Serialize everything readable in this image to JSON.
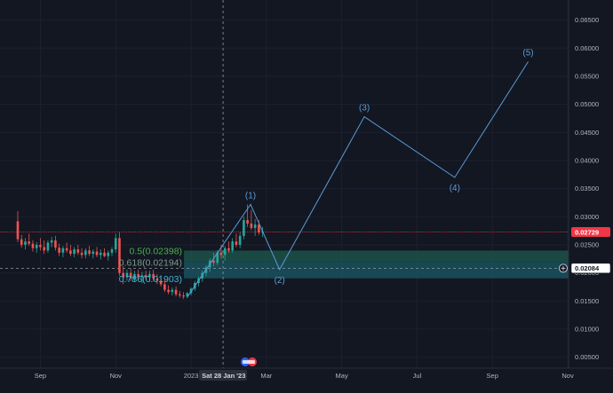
{
  "chart_data": {
    "type": "candlestick",
    "x_ticks": [
      {
        "label": "Sep",
        "t": 0.6
      },
      {
        "label": "Nov",
        "t": 2.6
      },
      {
        "label": "2023",
        "t": 4.6
      },
      {
        "label": "Mar",
        "t": 6.6
      },
      {
        "label": "May",
        "t": 8.6
      },
      {
        "label": "Jul",
        "t": 10.6
      },
      {
        "label": "Sep",
        "t": 12.6
      },
      {
        "label": "Nov",
        "t": 14.6
      }
    ],
    "crosshair_date_label": "Sat 28 Jan '23",
    "crosshair_t": 5.45,
    "y_ticks": [
      "0.06500",
      "0.06000",
      "0.05500",
      "0.05000",
      "0.04500",
      "0.04000",
      "0.03500",
      "0.03000",
      "0.02500",
      "0.02000",
      "0.01500",
      "0.01000",
      "0.00500"
    ],
    "last_price": {
      "label": "0.02729",
      "value": 0.02729,
      "color": "#f23645"
    },
    "crosshair_price": {
      "label": "0.02084",
      "value": 0.02084
    },
    "fib_levels": [
      {
        "label": "0.5(0.02398)",
        "value": 0.02398,
        "color": "#4caf50"
      },
      {
        "label": "0.618(0.02194)",
        "value": 0.02194,
        "color": "#7d9c8c"
      },
      {
        "label": "0.786(0.01903)",
        "value": 0.01903,
        "color": "#3fb4d6"
      }
    ],
    "zones": [
      {
        "from": 0.02194,
        "to": 0.02398,
        "color": "#1e5a4f"
      },
      {
        "from": 0.01903,
        "to": 0.02194,
        "color": "#1a5a66"
      }
    ],
    "elliott_wave": {
      "color": "#5b9bd5",
      "points": [
        {
          "label": "",
          "t": 4.5,
          "price": 0.0157
        },
        {
          "label": "(1)",
          "t": 6.18,
          "price": 0.0322
        },
        {
          "label": "(2)",
          "t": 6.95,
          "price": 0.0206
        },
        {
          "label": "(3)",
          "t": 9.2,
          "price": 0.0478
        },
        {
          "label": "(4)",
          "t": 11.6,
          "price": 0.037
        },
        {
          "label": "(5)",
          "t": 13.55,
          "price": 0.0576
        }
      ]
    },
    "candles": [
      {
        "t": 0.0,
        "o": 0.0292,
        "h": 0.031,
        "l": 0.0255,
        "c": 0.026
      },
      {
        "t": 0.1,
        "o": 0.026,
        "h": 0.0268,
        "l": 0.0245,
        "c": 0.025
      },
      {
        "t": 0.2,
        "o": 0.025,
        "h": 0.0262,
        "l": 0.0242,
        "c": 0.0256
      },
      {
        "t": 0.3,
        "o": 0.0256,
        "h": 0.027,
        "l": 0.0248,
        "c": 0.0252
      },
      {
        "t": 0.4,
        "o": 0.0252,
        "h": 0.0258,
        "l": 0.0238,
        "c": 0.0244
      },
      {
        "t": 0.5,
        "o": 0.0244,
        "h": 0.0255,
        "l": 0.0236,
        "c": 0.025
      },
      {
        "t": 0.6,
        "o": 0.025,
        "h": 0.0262,
        "l": 0.024,
        "c": 0.0246
      },
      {
        "t": 0.7,
        "o": 0.0246,
        "h": 0.0258,
        "l": 0.0234,
        "c": 0.024
      },
      {
        "t": 0.8,
        "o": 0.024,
        "h": 0.0258,
        "l": 0.0236,
        "c": 0.0254
      },
      {
        "t": 0.9,
        "o": 0.0254,
        "h": 0.0264,
        "l": 0.0246,
        "c": 0.0258
      },
      {
        "t": 1.0,
        "o": 0.0258,
        "h": 0.0266,
        "l": 0.024,
        "c": 0.0245
      },
      {
        "t": 1.1,
        "o": 0.0245,
        "h": 0.0252,
        "l": 0.023,
        "c": 0.0236
      },
      {
        "t": 1.2,
        "o": 0.0236,
        "h": 0.0248,
        "l": 0.0228,
        "c": 0.0244
      },
      {
        "t": 1.3,
        "o": 0.0244,
        "h": 0.0254,
        "l": 0.0236,
        "c": 0.024
      },
      {
        "t": 1.4,
        "o": 0.024,
        "h": 0.025,
        "l": 0.023,
        "c": 0.0234
      },
      {
        "t": 1.5,
        "o": 0.0234,
        "h": 0.0246,
        "l": 0.0228,
        "c": 0.0242
      },
      {
        "t": 1.6,
        "o": 0.0242,
        "h": 0.025,
        "l": 0.0232,
        "c": 0.0236
      },
      {
        "t": 1.7,
        "o": 0.0236,
        "h": 0.0244,
        "l": 0.0226,
        "c": 0.0232
      },
      {
        "t": 1.8,
        "o": 0.0232,
        "h": 0.0244,
        "l": 0.0226,
        "c": 0.024
      },
      {
        "t": 1.9,
        "o": 0.024,
        "h": 0.0248,
        "l": 0.023,
        "c": 0.0234
      },
      {
        "t": 2.0,
        "o": 0.0234,
        "h": 0.0242,
        "l": 0.0226,
        "c": 0.0238
      },
      {
        "t": 2.1,
        "o": 0.0238,
        "h": 0.0246,
        "l": 0.0228,
        "c": 0.0232
      },
      {
        "t": 2.2,
        "o": 0.0232,
        "h": 0.0242,
        "l": 0.0224,
        "c": 0.0236
      },
      {
        "t": 2.3,
        "o": 0.0236,
        "h": 0.0244,
        "l": 0.0228,
        "c": 0.023
      },
      {
        "t": 2.4,
        "o": 0.023,
        "h": 0.024,
        "l": 0.0222,
        "c": 0.0236
      },
      {
        "t": 2.5,
        "o": 0.0236,
        "h": 0.0246,
        "l": 0.023,
        "c": 0.0242
      },
      {
        "t": 2.6,
        "o": 0.0242,
        "h": 0.027,
        "l": 0.0236,
        "c": 0.0262
      },
      {
        "t": 2.7,
        "o": 0.0262,
        "h": 0.0272,
        "l": 0.0195,
        "c": 0.02
      },
      {
        "t": 2.8,
        "o": 0.02,
        "h": 0.0212,
        "l": 0.018,
        "c": 0.0192
      },
      {
        "t": 2.9,
        "o": 0.0192,
        "h": 0.0206,
        "l": 0.0186,
        "c": 0.02
      },
      {
        "t": 3.0,
        "o": 0.02,
        "h": 0.0208,
        "l": 0.0186,
        "c": 0.019
      },
      {
        "t": 3.1,
        "o": 0.019,
        "h": 0.0204,
        "l": 0.0184,
        "c": 0.0198
      },
      {
        "t": 3.2,
        "o": 0.0198,
        "h": 0.0206,
        "l": 0.0186,
        "c": 0.0192
      },
      {
        "t": 3.3,
        "o": 0.0192,
        "h": 0.0202,
        "l": 0.0182,
        "c": 0.0196
      },
      {
        "t": 3.4,
        "o": 0.0196,
        "h": 0.0204,
        "l": 0.0188,
        "c": 0.0192
      },
      {
        "t": 3.5,
        "o": 0.0192,
        "h": 0.0204,
        "l": 0.0184,
        "c": 0.0198
      },
      {
        "t": 3.6,
        "o": 0.0198,
        "h": 0.0206,
        "l": 0.0186,
        "c": 0.019
      },
      {
        "t": 3.7,
        "o": 0.019,
        "h": 0.0198,
        "l": 0.018,
        "c": 0.0186
      },
      {
        "t": 3.8,
        "o": 0.0186,
        "h": 0.0196,
        "l": 0.0176,
        "c": 0.018
      },
      {
        "t": 3.9,
        "o": 0.018,
        "h": 0.0188,
        "l": 0.0166,
        "c": 0.017
      },
      {
        "t": 4.0,
        "o": 0.017,
        "h": 0.0178,
        "l": 0.0162,
        "c": 0.0166
      },
      {
        "t": 4.1,
        "o": 0.0166,
        "h": 0.0174,
        "l": 0.016,
        "c": 0.017
      },
      {
        "t": 4.2,
        "o": 0.017,
        "h": 0.0176,
        "l": 0.0158,
        "c": 0.0162
      },
      {
        "t": 4.3,
        "o": 0.0162,
        "h": 0.0168,
        "l": 0.0156,
        "c": 0.016
      },
      {
        "t": 4.4,
        "o": 0.016,
        "h": 0.0166,
        "l": 0.0154,
        "c": 0.0158
      },
      {
        "t": 4.5,
        "o": 0.0158,
        "h": 0.0166,
        "l": 0.0155,
        "c": 0.0164
      },
      {
        "t": 4.6,
        "o": 0.0164,
        "h": 0.0174,
        "l": 0.016,
        "c": 0.0172
      },
      {
        "t": 4.7,
        "o": 0.0172,
        "h": 0.0186,
        "l": 0.0168,
        "c": 0.0182
      },
      {
        "t": 4.8,
        "o": 0.0182,
        "h": 0.0194,
        "l": 0.0176,
        "c": 0.019
      },
      {
        "t": 4.9,
        "o": 0.019,
        "h": 0.0204,
        "l": 0.0184,
        "c": 0.02
      },
      {
        "t": 5.0,
        "o": 0.02,
        "h": 0.0214,
        "l": 0.0194,
        "c": 0.021
      },
      {
        "t": 5.1,
        "o": 0.021,
        "h": 0.0226,
        "l": 0.0202,
        "c": 0.0222
      },
      {
        "t": 5.2,
        "o": 0.0222,
        "h": 0.0236,
        "l": 0.0212,
        "c": 0.0218
      },
      {
        "t": 5.3,
        "o": 0.0218,
        "h": 0.024,
        "l": 0.0214,
        "c": 0.0236
      },
      {
        "t": 5.4,
        "o": 0.0236,
        "h": 0.025,
        "l": 0.0226,
        "c": 0.0232
      },
      {
        "t": 5.5,
        "o": 0.0232,
        "h": 0.0248,
        "l": 0.0222,
        "c": 0.0244
      },
      {
        "t": 5.6,
        "o": 0.0244,
        "h": 0.0256,
        "l": 0.0236,
        "c": 0.024
      },
      {
        "t": 5.7,
        "o": 0.024,
        "h": 0.0262,
        "l": 0.0236,
        "c": 0.0256
      },
      {
        "t": 5.8,
        "o": 0.0256,
        "h": 0.027,
        "l": 0.0246,
        "c": 0.025
      },
      {
        "t": 5.9,
        "o": 0.025,
        "h": 0.0272,
        "l": 0.0244,
        "c": 0.0266
      },
      {
        "t": 6.0,
        "o": 0.0266,
        "h": 0.03,
        "l": 0.026,
        "c": 0.0294
      },
      {
        "t": 6.1,
        "o": 0.0294,
        "h": 0.0322,
        "l": 0.0282,
        "c": 0.0288
      },
      {
        "t": 6.2,
        "o": 0.0288,
        "h": 0.0312,
        "l": 0.0276,
        "c": 0.028
      },
      {
        "t": 6.3,
        "o": 0.028,
        "h": 0.0296,
        "l": 0.0266,
        "c": 0.0286
      },
      {
        "t": 6.4,
        "o": 0.0286,
        "h": 0.0294,
        "l": 0.0268,
        "c": 0.0272
      },
      {
        "t": 6.5,
        "o": 0.0272,
        "h": 0.0282,
        "l": 0.0264,
        "c": 0.0274
      }
    ]
  }
}
